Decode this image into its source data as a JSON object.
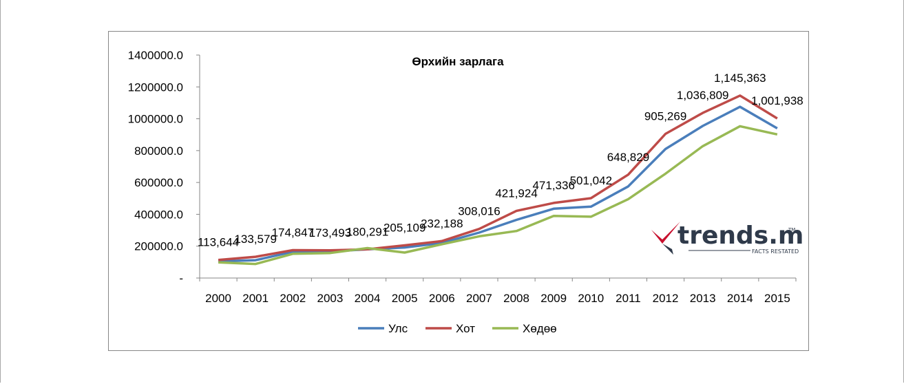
{
  "chart_data": {
    "type": "line",
    "title": "Өрхийн зарлага",
    "xlabel": "",
    "ylabel": "",
    "ylim": [
      0,
      1400000
    ],
    "yticks": [
      {
        "value": 0,
        "label": "-"
      },
      {
        "value": 200000,
        "label": "200000.0"
      },
      {
        "value": 400000,
        "label": "400000.0"
      },
      {
        "value": 600000,
        "label": "600000.0"
      },
      {
        "value": 800000,
        "label": "800000.0"
      },
      {
        "value": 1000000,
        "label": "1000000.0"
      },
      {
        "value": 1200000,
        "label": "1200000.0"
      },
      {
        "value": 1400000,
        "label": "1400000.0"
      }
    ],
    "grid": false,
    "legend": "bottom",
    "x": [
      "2000",
      "2001",
      "2002",
      "2003",
      "2004",
      "2005",
      "2006",
      "2007",
      "2008",
      "2009",
      "2010",
      "2011",
      "2012",
      "2013",
      "2014",
      "2015"
    ],
    "series": [
      {
        "name": "Улс",
        "color": "#4a7ebb",
        "values": [
          105000,
          112000,
          165000,
          167000,
          180000,
          192000,
          220000,
          285000,
          365000,
          435000,
          448000,
          575000,
          810000,
          955000,
          1075000,
          940000
        ]
      },
      {
        "name": "Хот",
        "color": "#be4b48",
        "values": [
          113644,
          133579,
          174847,
          173493,
          180291,
          205109,
          232188,
          308016,
          421924,
          471336,
          501042,
          648829,
          905269,
          1036809,
          1145363,
          1001938
        ],
        "labels": [
          "113,644",
          "133,579",
          "174,847",
          "173,493",
          "180,291",
          "205,109",
          "232,188",
          "308,016",
          "421,924",
          "471,336",
          "501,042",
          "648,829",
          "905,269",
          "1,036,809",
          "1,145,363",
          "1,001,938"
        ]
      },
      {
        "name": "Хөдөө",
        "color": "#98b954",
        "values": [
          98000,
          88000,
          152000,
          157000,
          188000,
          160000,
          212000,
          262000,
          295000,
          390000,
          385000,
          495000,
          655000,
          828000,
          953000,
          902000
        ]
      }
    ]
  },
  "logo": {
    "text": "trends.mn",
    "tm": "TM",
    "tagline": "FACTS RESTATED",
    "colors": {
      "check": "#c8102e",
      "text": "#2f3a4a"
    }
  }
}
